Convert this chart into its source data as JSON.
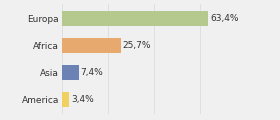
{
  "categories": [
    "Europa",
    "Africa",
    "Asia",
    "America"
  ],
  "values": [
    63.4,
    25.7,
    7.4,
    3.4
  ],
  "labels": [
    "63,4%",
    "25,7%",
    "7,4%",
    "3,4%"
  ],
  "bar_colors": [
    "#b5c98e",
    "#e8a96e",
    "#6a82b4",
    "#f0d060"
  ],
  "background_color": "#f0f0f0",
  "xlim": [
    0,
    78
  ],
  "bar_height": 0.55,
  "label_fontsize": 6.5,
  "tick_fontsize": 6.5,
  "grid_color": "#d8d8d8"
}
